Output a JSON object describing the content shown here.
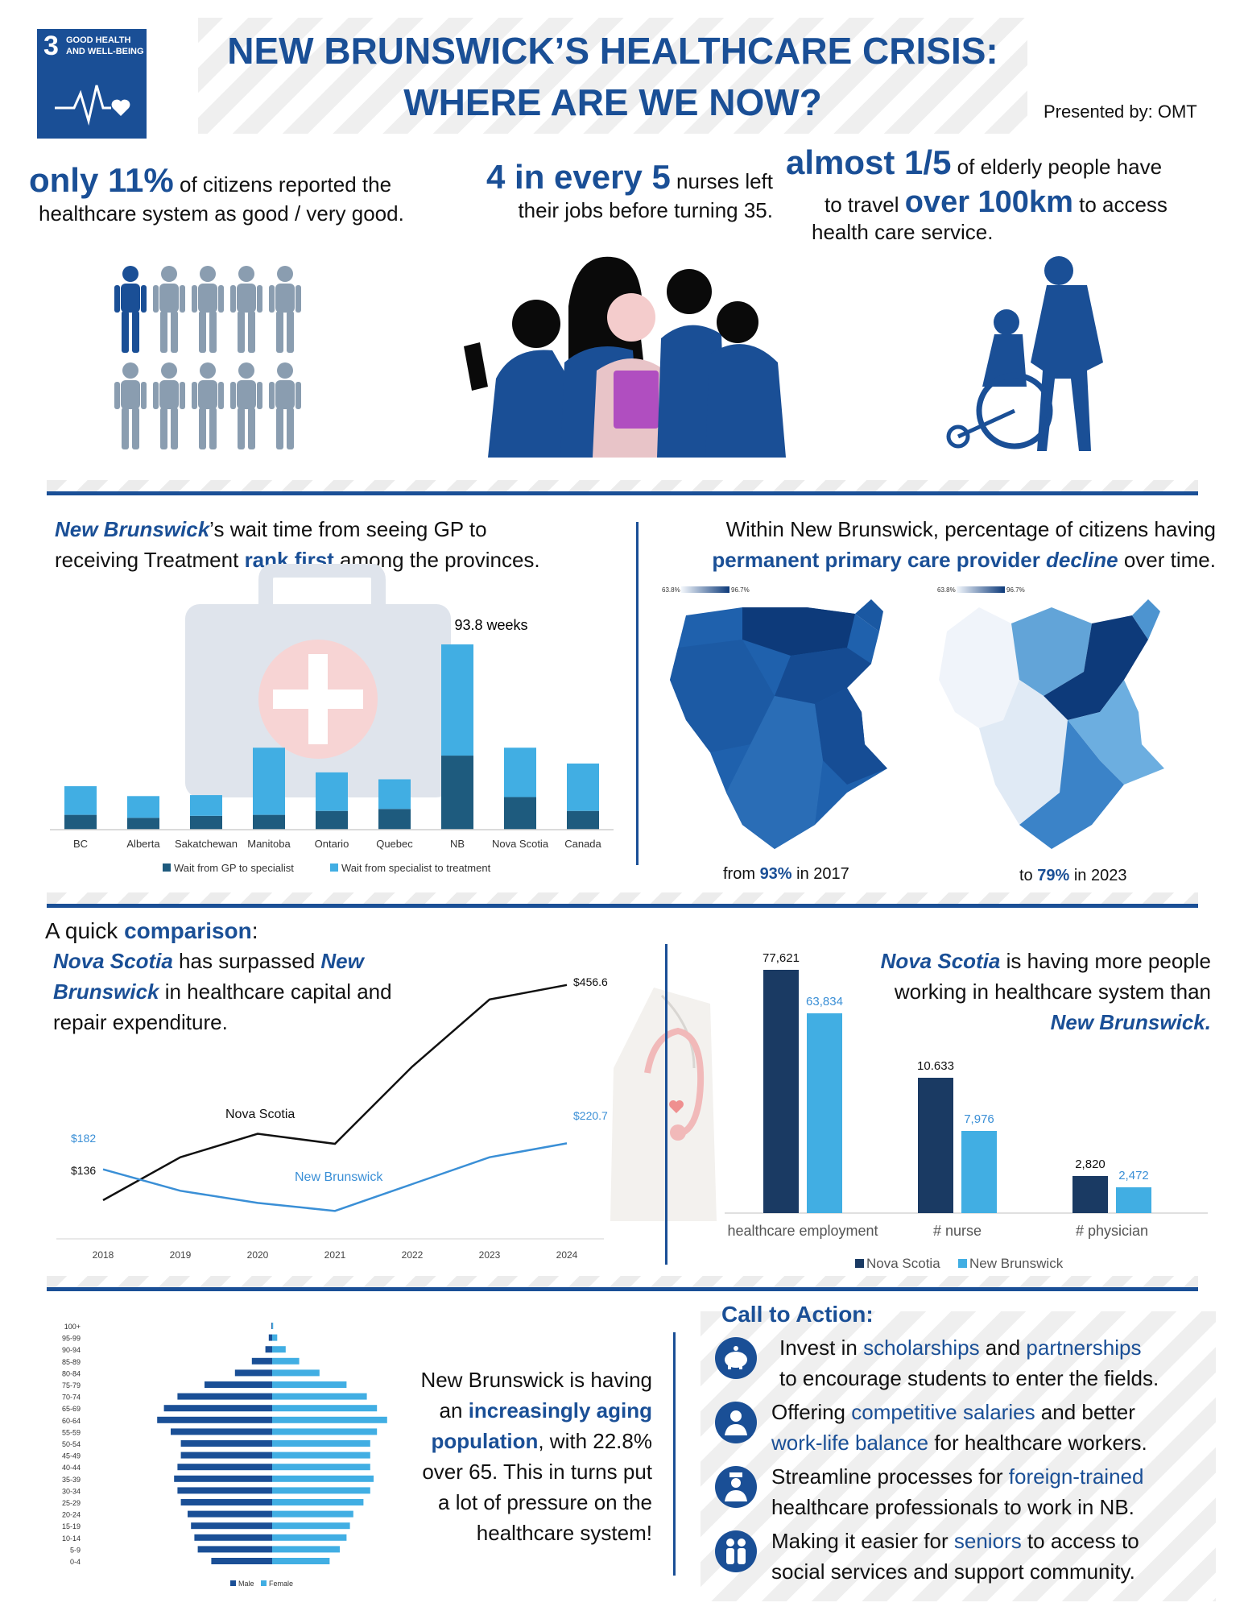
{
  "sdg": {
    "number": "3",
    "line1": "GOOD HEALTH",
    "line2": "AND WELL-BEING"
  },
  "header": {
    "title_line1": "NEW BRUNSWICK’S HEALTHCARE CRISIS:",
    "title_line2": "WHERE ARE WE NOW?",
    "presented_by": "Presented by: OMT"
  },
  "stats": {
    "stat1": {
      "big": "only 11%",
      "text1": " of citizens reported the",
      "text2": "healthcare system as good / very good."
    },
    "stat2": {
      "big": "4 in every 5",
      "text1": " nurses left",
      "text2": "their jobs before turning 35."
    },
    "stat3": {
      "big1": "almost 1/5",
      "text1": " of elderly people have",
      "text2": "to travel ",
      "big2": "over 100km",
      "text3": " to access",
      "text4": "health care service."
    }
  },
  "wait_section": {
    "h_part1": "New Brunswick",
    "h_part2": "’s wait time from seeing GP to",
    "h_part3": "receiving Treatment ",
    "h_part4": "rank first",
    "h_part5": " among the provinces."
  },
  "map_section": {
    "h_part1": "Within New Brunswick, percentage of citizens having",
    "h_part2": "permanent primary care provider ",
    "h_part3": "decline",
    "h_part4": " over time.",
    "scale_min": "63.8%",
    "scale_max": "96.7%",
    "cap1_a": "from ",
    "cap1_b": "93%",
    "cap1_c": " in 2017",
    "cap2_a": "to ",
    "cap2_b": "79%",
    "cap2_c": " in 2023"
  },
  "comparison": {
    "heading_a": "A quick ",
    "heading_b": "comparison",
    "heading_c": ":",
    "capital_text": {
      "p1": "Nova Scotia",
      "p2": " has surpassed ",
      "p3": "New",
      "p4": "Brunswick",
      "p5": " in healthcare capital and",
      "p6": "repair expenditure."
    },
    "workforce_text": {
      "p1": "Nova Scotia",
      "p2": " is having more people",
      "p3": "working in healthcare system than",
      "p4": "New Brunswick."
    }
  },
  "aging": {
    "p1": "New Brunswick is having",
    "p2": "an ",
    "p3": "increasingly aging",
    "p4": "population",
    "p5": ", with 22.8%",
    "p6": "over 65. This in turns put",
    "p7": "a lot of pressure on the",
    "p8": "healthcare system!"
  },
  "cta": {
    "title": "Call to Action:",
    "items": [
      {
        "icon": "piggy-bank-icon",
        "l1a": "Invest in ",
        "l1b": "scholarships",
        "l1c": " and ",
        "l1d": "partnerships",
        "l2": "to encourage students to enter the fields."
      },
      {
        "icon": "doctor-icon",
        "l1a": "Offering ",
        "l1b": "competitive salaries",
        "l1c": " and better",
        "l2a": "work-life balance",
        "l2b": " for healthcare workers."
      },
      {
        "icon": "nurse-icon",
        "l1a": "Streamline processes for ",
        "l1b": "foreign-trained",
        "l2": "healthcare professionals to work in NB."
      },
      {
        "icon": "elderly-couple-icon",
        "l1a": "Making it easier for ",
        "l1b": "seniors",
        "l1c": " to access to",
        "l2": "social services and support community."
      }
    ]
  },
  "colors": {
    "navy": "#1a4f96",
    "dark": "#1e4468",
    "light": "#41aee3",
    "person_gray": "#8a9db0"
  },
  "chart_data": [
    {
      "type": "bar",
      "stacked": true,
      "categories": [
        "BC",
        "Alberta",
        "Sakatchewan",
        "Manitoba",
        "Ontario",
        "Quebec",
        "NB",
        "Nova Scotia",
        "Canada"
      ],
      "series": [
        {
          "name": "Wait from GP to specialist",
          "values": [
            7.5,
            6,
            7,
            7.5,
            9.5,
            10.5,
            37.5,
            16.5,
            9.5
          ]
        },
        {
          "name": "Wait from specialist to treatment",
          "values": [
            14.5,
            11,
            10.5,
            34,
            19.5,
            15,
            56.3,
            25,
            24
          ]
        }
      ],
      "annotation": "93.8 weeks",
      "ylim": [
        0,
        100
      ],
      "legend": "bottom"
    },
    {
      "type": "line",
      "x": [
        "2018",
        "2019",
        "2020",
        "2021",
        "2022",
        "2023",
        "2024"
      ],
      "series": [
        {
          "name": "Nova Scotia",
          "values": [
            136,
            200,
            235,
            220,
            335,
            435,
            456.6
          ]
        },
        {
          "name": "New Brunswick",
          "values": [
            182,
            150,
            132,
            120,
            160,
            200,
            220.7
          ]
        }
      ],
      "point_labels": {
        "ns_start": "$136",
        "ns_end": "$456.6",
        "nb_start": "$182",
        "nb_end": "$220.7"
      },
      "ylim": [
        0,
        500
      ]
    },
    {
      "type": "bar",
      "categories": [
        "healthcare employment",
        "# nurse",
        "# physician"
      ],
      "series": [
        {
          "name": "Nova Scotia",
          "values": [
            77621,
            10633,
            2820
          ],
          "labels": [
            "77,621",
            "10.633",
            "2,820"
          ]
        },
        {
          "name": "New Brunswick",
          "values": [
            63834,
            7976,
            2472
          ],
          "labels": [
            "63,834",
            "7,976",
            "2,472"
          ]
        }
      ],
      "legend": "bottom"
    },
    {
      "type": "bar",
      "orientation": "horizontal",
      "categories": [
        "0-4",
        "5-9",
        "10-14",
        "15-19",
        "20-24",
        "25-29",
        "30-34",
        "35-39",
        "40-44",
        "45-49",
        "50-54",
        "55-59",
        "60-64",
        "65-69",
        "70-74",
        "75-79",
        "80-84",
        "85-89",
        "90-94",
        "95-99",
        "100+"
      ],
      "series": [
        {
          "name": "Male",
          "values": [
            18,
            22,
            23,
            24,
            25,
            27,
            28,
            29,
            28,
            27,
            27,
            30,
            34,
            32,
            28,
            20,
            11,
            6,
            2,
            1,
            0.2
          ]
        },
        {
          "name": "Female",
          "values": [
            17,
            20,
            22,
            23,
            24,
            27,
            29,
            30,
            29,
            29,
            29,
            31,
            34,
            31,
            28,
            22,
            14,
            8,
            4,
            1.5,
            0.3
          ]
        }
      ],
      "legend": "bottom"
    }
  ]
}
